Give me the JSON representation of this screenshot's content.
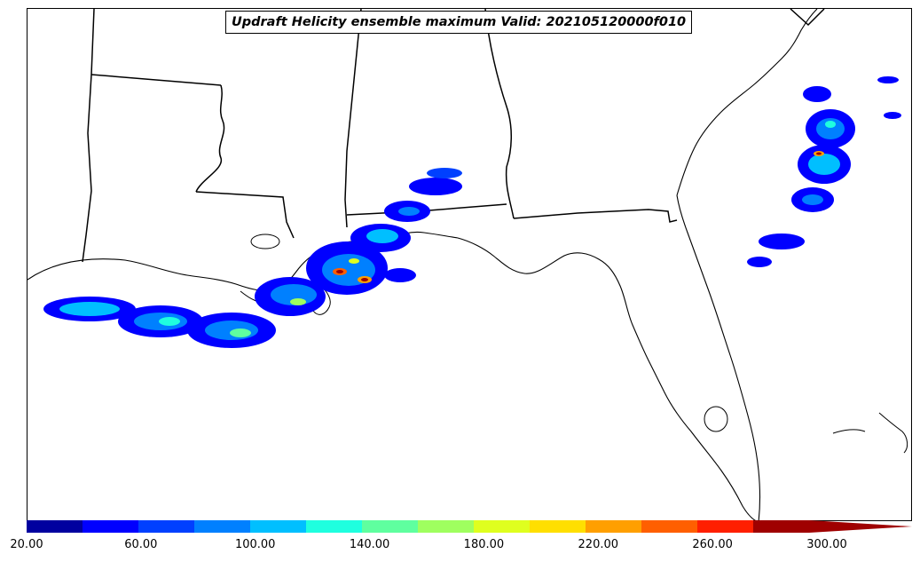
{
  "title": "Updraft Helicity ensemble maximum Valid: 202105120000f010",
  "colorbar": {
    "min": 20,
    "max": 300,
    "step": 20,
    "extend": "max",
    "colors": [
      "#00009f",
      "#0000ff",
      "#0040ff",
      "#0080ff",
      "#00bfff",
      "#1fffdf",
      "#5fff9f",
      "#9fff5f",
      "#dfff1f",
      "#ffdf00",
      "#ff9f00",
      "#ff5f00",
      "#ff1f00",
      "#9f0000"
    ],
    "labels": [
      "20.00",
      "60.00",
      "100.00",
      "140.00",
      "180.00",
      "220.00",
      "260.00",
      "300.00"
    ]
  },
  "overlays": {
    "boundaries": "US state boundaries and coastlines (Gulf Coast, Florida, Georgia, South Carolina)",
    "field": "updraft helicity swaths across southern Louisiana, Mississippi/Alabama coast, and off the Georgia/South Carolina coast"
  }
}
